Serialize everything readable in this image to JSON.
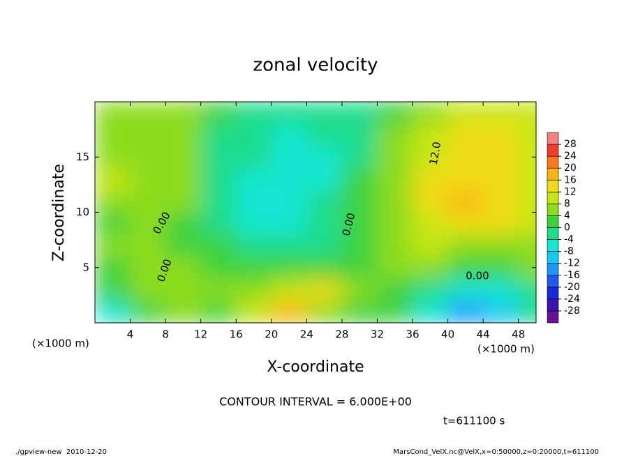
{
  "chart_data": {
    "type": "contour",
    "title": "zonal velocity",
    "xlabel": "X-coordinate",
    "ylabel": "Z-coordinate",
    "x_units": "(×1000 m)",
    "y_units": "(×1000 m)",
    "xlim": [
      0,
      50
    ],
    "ylim": [
      0,
      20
    ],
    "xticks": [
      4,
      8,
      12,
      16,
      20,
      24,
      28,
      32,
      36,
      40,
      44,
      48
    ],
    "yticks": [
      5,
      10,
      15
    ],
    "x": [
      2,
      6,
      10,
      14,
      18,
      22,
      26,
      30,
      34,
      38,
      42,
      46,
      50
    ],
    "y": [
      1,
      3,
      5,
      7,
      9,
      11,
      13,
      15,
      17,
      19
    ],
    "z": [
      [
        -8,
        2,
        4,
        2,
        10,
        18,
        6,
        2,
        0,
        -6,
        -14,
        -10,
        -4
      ],
      [
        0,
        4,
        4,
        4,
        6,
        10,
        12,
        6,
        2,
        -2,
        -8,
        -6,
        -2
      ],
      [
        2,
        4,
        4,
        2,
        2,
        2,
        2,
        2,
        4,
        4,
        2,
        2,
        4
      ],
      [
        4,
        4,
        2,
        0,
        -4,
        -4,
        -2,
        2,
        6,
        8,
        6,
        6,
        6
      ],
      [
        2,
        4,
        2,
        -2,
        -6,
        -6,
        -4,
        0,
        6,
        10,
        14,
        12,
        8
      ],
      [
        6,
        6,
        4,
        -2,
        -8,
        -8,
        -4,
        0,
        6,
        12,
        16,
        14,
        10
      ],
      [
        8,
        6,
        4,
        -2,
        -6,
        -8,
        -6,
        0,
        6,
        12,
        14,
        12,
        10
      ],
      [
        6,
        6,
        4,
        -2,
        -4,
        -8,
        -8,
        -2,
        4,
        10,
        12,
        12,
        10
      ],
      [
        4,
        6,
        4,
        -2,
        -4,
        -6,
        -4,
        -2,
        4,
        8,
        12,
        12,
        8
      ],
      [
        4,
        6,
        4,
        0,
        -4,
        -4,
        -2,
        -2,
        2,
        6,
        10,
        10,
        8
      ]
    ],
    "levels": [
      -28,
      -24,
      -20,
      -16,
      -12,
      -8,
      -4,
      0,
      4,
      8,
      12,
      16,
      20,
      24,
      28
    ],
    "colors": [
      "#6a0f9a",
      "#3c14b4",
      "#1428dc",
      "#1e5af0",
      "#1e96ff",
      "#14c8f0",
      "#14e6d2",
      "#1edc8c",
      "#3cd23c",
      "#8cdc1e",
      "#c8e614",
      "#f0dc14",
      "#fab414",
      "#fa781e",
      "#f03c28",
      "#f58282"
    ],
    "contour_labels": [
      {
        "value": 0,
        "label": "0.00"
      },
      {
        "value": 0,
        "label": "0.00"
      },
      {
        "value": 0,
        "label": "0.00"
      },
      {
        "value": 0,
        "label": "0.00"
      },
      {
        "value": 12,
        "label": "12.0"
      }
    ],
    "contour_interval": "CONTOUR INTERVAL = 6.000E+00",
    "time": "t=611100 s",
    "footer_left": "./gpview-new  2010-12-20",
    "footer_right": "MarsCond_VelX.nc@VelX,x=0:50000,z=0:20000,t=611100"
  }
}
